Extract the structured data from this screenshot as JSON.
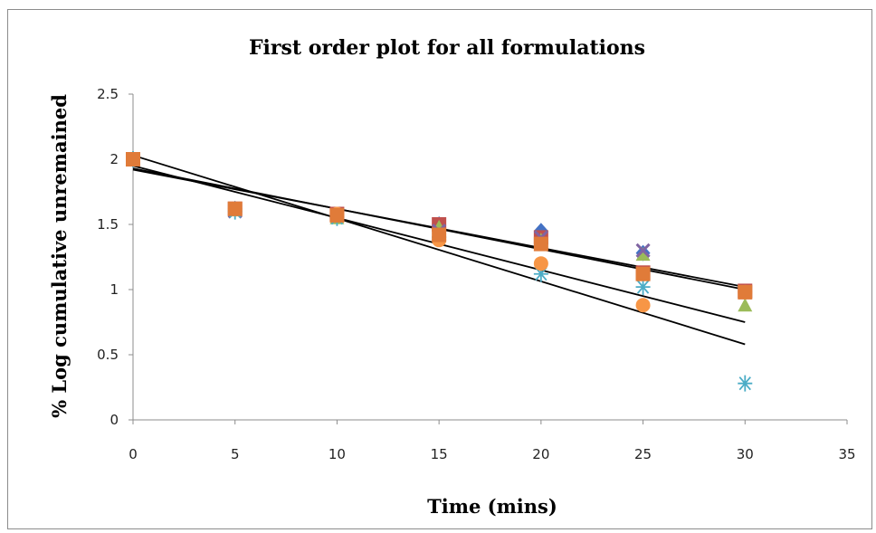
{
  "chart_data": {
    "type": "scatter",
    "title": "First order plot for all formulations",
    "xlabel": "Time (mins)",
    "ylabel": "% Log cumulative unremained",
    "xlim": [
      0,
      35
    ],
    "ylim": [
      0,
      2.5
    ],
    "x_ticks": [
      "0",
      "5",
      "10",
      "15",
      "20",
      "25",
      "30",
      "35"
    ],
    "y_ticks": [
      "0",
      "0.5",
      "1",
      "1.5",
      "2",
      "2.5"
    ],
    "grid": false,
    "legend": "none",
    "series": [
      {
        "marker": "diamond",
        "color": "#4472c4",
        "points": [
          [
            0,
            2.0
          ],
          [
            5,
            1.62
          ],
          [
            10,
            1.56
          ],
          [
            15,
            1.5
          ],
          [
            20,
            1.45
          ],
          [
            25,
            1.28
          ],
          [
            30,
            0.98
          ]
        ]
      },
      {
        "marker": "square",
        "color": "#c0504d",
        "points": [
          [
            0,
            2.0
          ],
          [
            5,
            1.62
          ],
          [
            10,
            1.58
          ],
          [
            15,
            1.5
          ],
          [
            20,
            1.4
          ],
          [
            25,
            1.13
          ],
          [
            30,
            0.99
          ]
        ]
      },
      {
        "marker": "triangle",
        "color": "#9bbb59",
        "points": [
          [
            0,
            2.0
          ],
          [
            5,
            1.61
          ],
          [
            10,
            1.55
          ],
          [
            15,
            1.48
          ],
          [
            20,
            1.38
          ],
          [
            25,
            1.27
          ],
          [
            30,
            0.88
          ]
        ]
      },
      {
        "marker": "x",
        "color": "#8064a2",
        "points": [
          [
            0,
            2.0
          ],
          [
            5,
            1.6
          ],
          [
            10,
            1.57
          ],
          [
            15,
            1.45
          ],
          [
            20,
            1.4
          ],
          [
            25,
            1.3
          ],
          [
            30,
            0.98
          ]
        ]
      },
      {
        "marker": "asterisk",
        "color": "#4bacc6",
        "points": [
          [
            0,
            2.0
          ],
          [
            5,
            1.6
          ],
          [
            10,
            1.55
          ],
          [
            15,
            1.4
          ],
          [
            20,
            1.12
          ],
          [
            25,
            1.02
          ],
          [
            30,
            0.28
          ]
        ]
      },
      {
        "marker": "circle",
        "color": "#f79646",
        "points": [
          [
            0,
            2.0
          ],
          [
            5,
            1.62
          ],
          [
            10,
            1.58
          ],
          [
            15,
            1.38
          ],
          [
            20,
            1.2
          ],
          [
            25,
            0.88
          ],
          [
            30,
            0.98
          ]
        ]
      },
      {
        "marker": "square",
        "color": "#e07b39",
        "points": [
          [
            0,
            2.0
          ],
          [
            5,
            1.62
          ],
          [
            10,
            1.57
          ],
          [
            15,
            1.42
          ],
          [
            20,
            1.35
          ],
          [
            25,
            1.12
          ],
          [
            30,
            0.98
          ]
        ]
      }
    ],
    "trendlines": [
      {
        "x": [
          0,
          30
        ],
        "y": [
          1.92,
          1.02
        ],
        "color": "#000000"
      },
      {
        "x": [
          0,
          30
        ],
        "y": [
          1.93,
          1.0
        ],
        "color": "#000000"
      },
      {
        "x": [
          0,
          30
        ],
        "y": [
          1.95,
          0.75
        ],
        "color": "#000000"
      },
      {
        "x": [
          0,
          30
        ],
        "y": [
          2.03,
          0.58
        ],
        "color": "#000000"
      }
    ]
  }
}
